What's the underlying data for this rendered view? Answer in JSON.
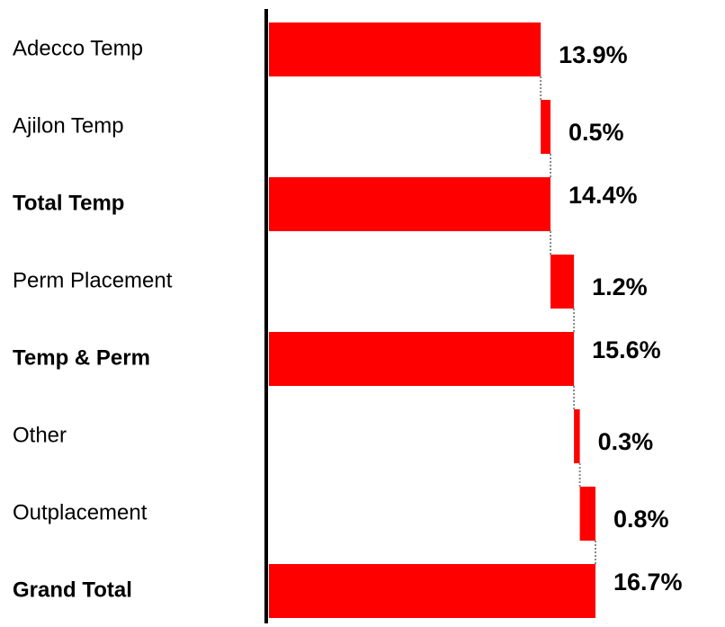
{
  "chart_data": {
    "type": "waterfall",
    "orientation": "horizontal",
    "categories": [
      "Adecco Temp",
      "Ajilon  Temp",
      "Total Temp",
      "Perm Placement",
      "Temp & Perm",
      "Other",
      "Outplacement",
      "Grand Total"
    ],
    "values": [
      13.9,
      0.5,
      14.4,
      1.2,
      15.6,
      0.3,
      0.8,
      16.7
    ],
    "value_labels": [
      "13.9%",
      "0.5%",
      "14.4%",
      "1.2%",
      "15.6%",
      "0.3%",
      "0.8%",
      "16.7%"
    ],
    "is_total": [
      false,
      false,
      true,
      false,
      true,
      false,
      false,
      true
    ],
    "color": "#ff0000"
  }
}
